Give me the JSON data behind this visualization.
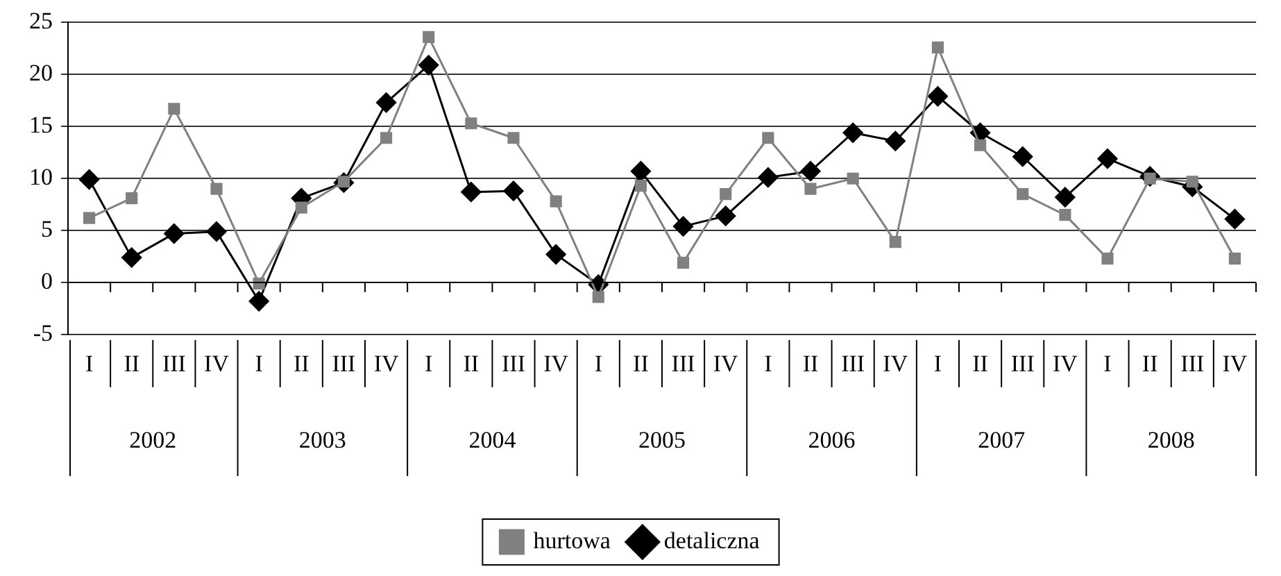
{
  "chart_data": {
    "type": "line",
    "categories": [
      [
        "I",
        "2002"
      ],
      [
        "II",
        null
      ],
      [
        "III",
        null
      ],
      [
        "IV",
        null
      ],
      [
        "I",
        "2003"
      ],
      [
        "II",
        null
      ],
      [
        "III",
        null
      ],
      [
        "IV",
        null
      ],
      [
        "I",
        "2004"
      ],
      [
        "II",
        null
      ],
      [
        "III",
        null
      ],
      [
        "IV",
        null
      ],
      [
        "I",
        "2005"
      ],
      [
        "II",
        null
      ],
      [
        "III",
        null
      ],
      [
        "IV",
        null
      ],
      [
        "I",
        "2006"
      ],
      [
        "II",
        null
      ],
      [
        "III",
        null
      ],
      [
        "IV",
        null
      ],
      [
        "I",
        "2007"
      ],
      [
        "II",
        null
      ],
      [
        "III",
        null
      ],
      [
        "IV",
        null
      ],
      [
        "I",
        "2008"
      ],
      [
        "II",
        null
      ],
      [
        "III",
        null
      ],
      [
        "IV",
        null
      ]
    ],
    "series": [
      {
        "name": "hurtowa",
        "color": "#808080",
        "marker": "square",
        "values": [
          6.2,
          8.1,
          16.7,
          9.0,
          -0.1,
          7.2,
          9.7,
          13.9,
          23.6,
          15.3,
          13.9,
          7.8,
          -1.4,
          9.3,
          1.9,
          8.5,
          13.9,
          9.0,
          10.0,
          3.9,
          22.6,
          13.2,
          8.5,
          6.5,
          2.3,
          10.0,
          9.7,
          2.3
        ]
      },
      {
        "name": "detaliczna",
        "color": "#000000",
        "marker": "diamond",
        "values": [
          9.9,
          2.4,
          4.7,
          4.9,
          -1.8,
          8.1,
          9.6,
          17.3,
          20.9,
          8.7,
          8.8,
          2.7,
          -0.2,
          10.7,
          5.4,
          6.4,
          10.1,
          10.7,
          14.4,
          13.6,
          17.9,
          14.4,
          12.1,
          8.2,
          11.9,
          10.2,
          9.2,
          6.1
        ]
      }
    ],
    "ylim": [
      -5,
      25
    ],
    "yticks": [
      -5,
      0,
      5,
      10,
      15,
      20,
      25
    ],
    "grid": "y",
    "legend": "bottom",
    "line_style": "solid"
  }
}
